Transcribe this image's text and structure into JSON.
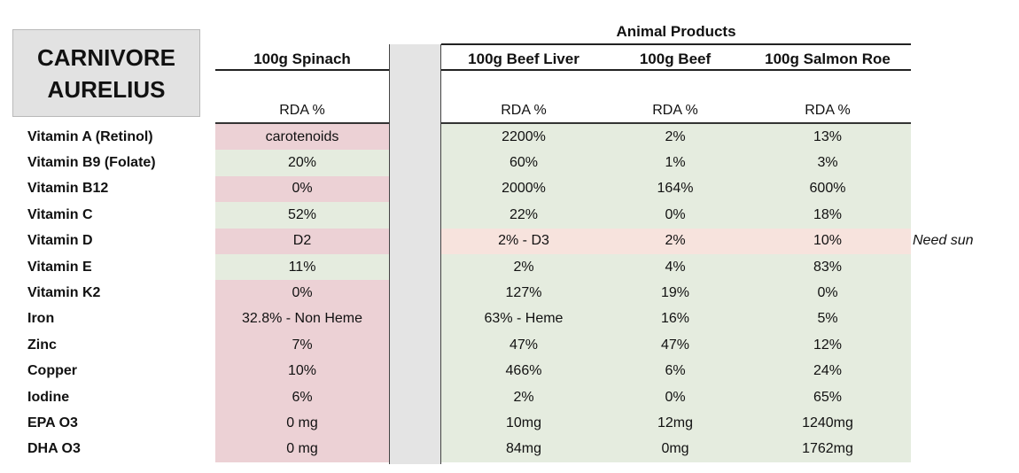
{
  "logo": {
    "line1": "CARNIVORE",
    "line2": "AURELIUS"
  },
  "group_label": "Animal Products",
  "columns": [
    {
      "name": "100g Spinach",
      "sub": "RDA %"
    },
    {
      "name": "100g Beef Liver",
      "sub": "RDA %"
    },
    {
      "name": "100g Beef",
      "sub": "RDA %"
    },
    {
      "name": "100g Salmon Roe",
      "sub": "RDA %"
    }
  ],
  "rows": [
    {
      "label": "Vitamin A (Retinol)",
      "cells": [
        "carotenoids",
        "2200%",
        "2%",
        "13%"
      ],
      "spinach_color": "red",
      "animal_color": "green",
      "note": ""
    },
    {
      "label": "Vitamin B9 (Folate)",
      "cells": [
        "20%",
        "60%",
        "1%",
        "3%"
      ],
      "spinach_color": "green",
      "animal_color": "green",
      "note": ""
    },
    {
      "label": "Vitamin B12",
      "cells": [
        "0%",
        "2000%",
        "164%",
        "600%"
      ],
      "spinach_color": "red",
      "animal_color": "green",
      "note": ""
    },
    {
      "label": "Vitamin C",
      "cells": [
        "52%",
        "22%",
        "0%",
        "18%"
      ],
      "spinach_color": "green",
      "animal_color": "green",
      "note": ""
    },
    {
      "label": "Vitamin D",
      "cells": [
        "D2",
        "2% - D3",
        "2%",
        "10%"
      ],
      "spinach_color": "red",
      "animal_color": "peach",
      "note": "Need sun"
    },
    {
      "label": "Vitamin E",
      "cells": [
        "11%",
        "2%",
        "4%",
        "83%"
      ],
      "spinach_color": "green",
      "animal_color": "green",
      "note": ""
    },
    {
      "label": "Vitamin K2",
      "cells": [
        "0%",
        "127%",
        "19%",
        "0%"
      ],
      "spinach_color": "red",
      "animal_color": "green",
      "note": ""
    },
    {
      "label": "Iron",
      "cells": [
        "32.8% - Non Heme",
        "63% - Heme",
        "16%",
        "5%"
      ],
      "spinach_color": "red",
      "animal_color": "green",
      "note": ""
    },
    {
      "label": "Zinc",
      "cells": [
        "7%",
        "47%",
        "47%",
        "12%"
      ],
      "spinach_color": "red",
      "animal_color": "green",
      "note": ""
    },
    {
      "label": "Copper",
      "cells": [
        "10%",
        "466%",
        "6%",
        "24%"
      ],
      "spinach_color": "red",
      "animal_color": "green",
      "note": ""
    },
    {
      "label": "Iodine",
      "cells": [
        "6%",
        "2%",
        "0%",
        "65%"
      ],
      "spinach_color": "red",
      "animal_color": "green",
      "note": ""
    },
    {
      "label": "EPA O3",
      "cells": [
        "0 mg",
        "10mg",
        "12mg",
        "1240mg"
      ],
      "spinach_color": "red",
      "animal_color": "green",
      "note": ""
    },
    {
      "label": "DHA O3",
      "cells": [
        "0 mg",
        "84mg",
        "0mg",
        "1762mg"
      ],
      "spinach_color": "red",
      "animal_color": "green",
      "note": ""
    }
  ]
}
